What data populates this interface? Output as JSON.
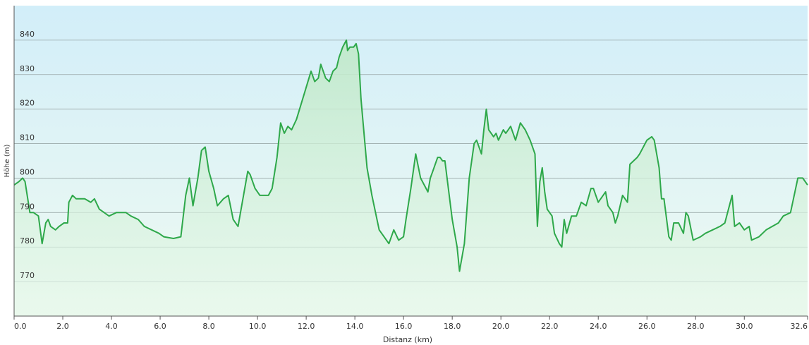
{
  "chart_data": {
    "type": "area",
    "x_label": "Distanz  (km)",
    "y_label": "Höhe (m)",
    "x": [
      0,
      0.2,
      0.35,
      0.45,
      0.65,
      0.8,
      1.0,
      1.15,
      1.3,
      1.4,
      1.5,
      1.7,
      1.85,
      2.05,
      2.2,
      2.25,
      2.4,
      2.55,
      2.9,
      3.15,
      3.3,
      3.5,
      3.7,
      3.9,
      4.2,
      4.6,
      4.8,
      5.1,
      5.35,
      5.65,
      5.95,
      6.15,
      6.55,
      6.85,
      7.05,
      7.2,
      7.35,
      7.55,
      7.7,
      7.85,
      8.0,
      8.2,
      8.35,
      8.6,
      8.8,
      9.0,
      9.2,
      9.4,
      9.6,
      9.7,
      9.9,
      10.1,
      10.45,
      10.6,
      10.8,
      10.95,
      11.1,
      11.25,
      11.4,
      11.6,
      11.9,
      12.2,
      12.35,
      12.5,
      12.6,
      12.8,
      12.95,
      13.1,
      13.25,
      13.35,
      13.5,
      13.65,
      13.7,
      13.8,
      13.95,
      14.05,
      14.15,
      14.25,
      14.5,
      14.7,
      15.0,
      15.2,
      15.4,
      15.6,
      15.8,
      16.0,
      16.1,
      16.3,
      16.5,
      16.7,
      17.0,
      17.1,
      17.2,
      17.4,
      17.5,
      17.6,
      17.7,
      18.0,
      18.2,
      18.3,
      18.5,
      18.7,
      18.9,
      19.0,
      19.2,
      19.3,
      19.4,
      19.5,
      19.7,
      19.8,
      19.9,
      20.1,
      20.2,
      20.4,
      20.6,
      20.8,
      21.0,
      21.2,
      21.4,
      21.5,
      21.6,
      21.7,
      21.8,
      21.9,
      22.1,
      22.2,
      22.4,
      22.5,
      22.6,
      22.7,
      22.9,
      23.1,
      23.3,
      23.5,
      23.7,
      23.8,
      24.0,
      24.2,
      24.3,
      24.4,
      24.6,
      24.7,
      24.8,
      25.0,
      25.1,
      25.2,
      25.3,
      25.6,
      25.7,
      26.0,
      26.2,
      26.3,
      26.5,
      26.6,
      26.7,
      26.9,
      27.0,
      27.1,
      27.3,
      27.5,
      27.6,
      27.7,
      27.9,
      28.2,
      28.4,
      28.7,
      29.0,
      29.2,
      29.5,
      29.6,
      29.8,
      30.0,
      30.2,
      30.3,
      30.6,
      30.9,
      31.4,
      31.6,
      31.9,
      32.2,
      32.4,
      32.6
    ],
    "values": [
      798,
      799,
      800,
      799,
      790,
      790,
      789,
      781,
      787,
      788,
      786,
      785,
      786,
      787,
      787,
      793,
      795,
      794,
      794,
      793,
      794,
      791,
      790,
      789,
      790,
      790,
      789,
      788,
      786,
      785,
      784,
      783,
      782.5,
      783,
      795,
      800,
      792,
      800,
      808,
      809,
      802,
      797,
      792,
      794,
      795,
      788,
      786,
      794,
      802,
      801,
      797,
      795,
      795,
      797,
      806,
      816,
      813,
      815,
      814,
      817,
      824,
      831,
      828,
      829,
      833,
      829,
      828,
      831,
      832,
      835,
      838,
      840,
      837,
      838,
      838,
      839,
      836,
      823,
      803,
      795,
      785,
      783,
      781,
      785,
      782,
      783,
      788,
      797,
      807,
      800,
      796,
      800,
      802,
      806,
      806,
      805,
      805,
      788,
      780,
      773,
      781,
      800,
      810,
      811,
      807,
      814,
      820,
      814,
      812,
      813,
      811,
      814,
      813,
      815,
      811,
      816,
      814,
      811,
      807,
      786,
      799,
      803,
      796,
      791,
      789,
      784,
      781,
      780,
      788,
      784,
      789,
      789,
      793,
      792,
      797,
      797,
      793,
      795,
      796,
      792,
      790,
      787,
      789,
      795,
      794,
      793,
      804,
      806,
      807,
      811,
      812,
      811,
      803,
      794,
      794,
      783,
      782,
      787,
      787,
      784,
      790,
      789,
      782,
      783,
      784,
      785,
      786,
      787,
      795,
      786,
      787,
      785,
      786,
      782,
      783,
      785,
      787,
      789,
      790,
      800,
      800,
      798
    ],
    "color": "#2ea84a",
    "xlim": [
      0,
      32.6
    ],
    "ylim": [
      760,
      850
    ],
    "xticks": [
      {
        "value": 0,
        "label": "0.0"
      },
      {
        "value": 2,
        "label": "2.0"
      },
      {
        "value": 4,
        "label": "4.0"
      },
      {
        "value": 6,
        "label": "6.0"
      },
      {
        "value": 8,
        "label": "8.0"
      },
      {
        "value": 10,
        "label": "10.0"
      },
      {
        "value": 12,
        "label": "12.0"
      },
      {
        "value": 14,
        "label": "14.0"
      },
      {
        "value": 16,
        "label": "16.0"
      },
      {
        "value": 18,
        "label": "18.0"
      },
      {
        "value": 20,
        "label": "20.0"
      },
      {
        "value": 22,
        "label": "22.0"
      },
      {
        "value": 24,
        "label": "24.0"
      },
      {
        "value": 26,
        "label": "26.0"
      },
      {
        "value": 28,
        "label": "28.0"
      },
      {
        "value": 30,
        "label": "30.0"
      },
      {
        "value": 32.6,
        "label": "32.6"
      }
    ],
    "yticks": [
      770,
      780,
      790,
      800,
      810,
      820,
      830,
      840
    ],
    "grid": true
  }
}
